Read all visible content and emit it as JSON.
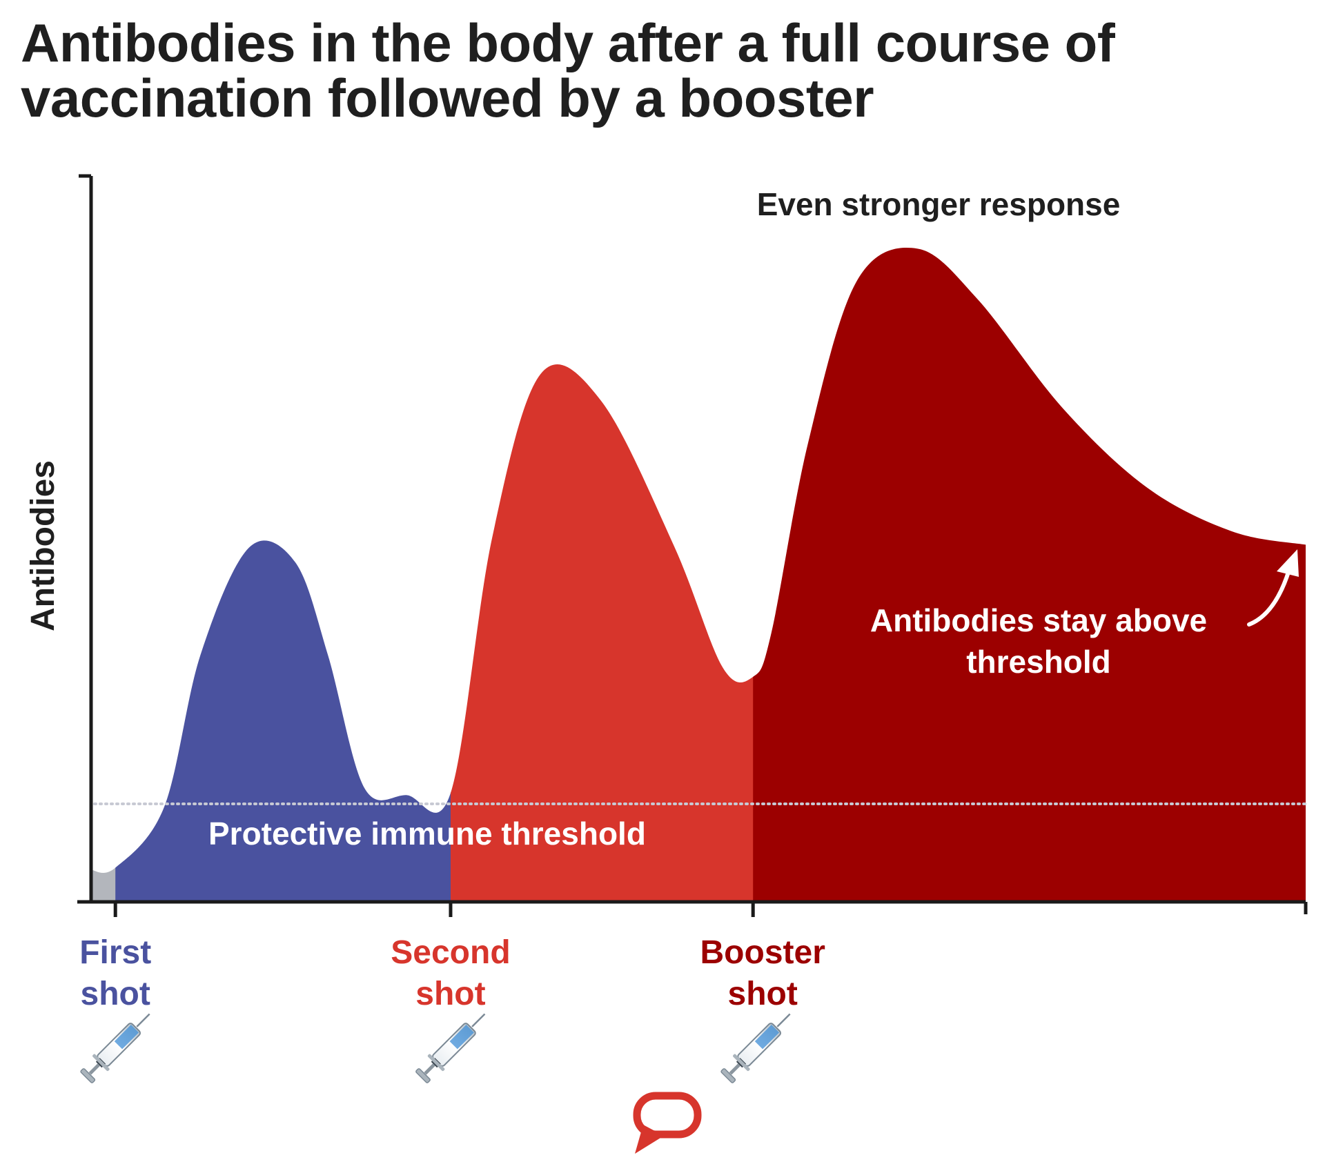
{
  "title_lines": [
    "Antibodies in the body after a full course of",
    "vaccination followed by a booster"
  ],
  "chart_data": {
    "type": "area",
    "ylabel": "Antibodies",
    "threshold": {
      "label": "Protective immune threshold",
      "value": 0.135
    },
    "annotations": [
      {
        "text": "Even stronger response",
        "near": "booster peak"
      },
      {
        "text_lines": [
          "Antibodies stay above",
          "threshold"
        ],
        "near": "end of curve"
      }
    ],
    "events": [
      {
        "name": "First shot",
        "lines": [
          "First",
          "shot"
        ],
        "x": 0.02,
        "color": "#4a529f"
      },
      {
        "name": "Second shot",
        "lines": [
          "Second",
          "shot"
        ],
        "x": 0.296,
        "color": "#d7352c"
      },
      {
        "name": "Booster shot",
        "lines": [
          "Booster",
          "shot"
        ],
        "x": 0.545,
        "color": "#9c0000"
      }
    ],
    "segments": [
      {
        "name": "pre-vaccination",
        "x_range": [
          0,
          0.02
        ],
        "color": "#b3b6bc"
      },
      {
        "name": "after first shot",
        "x_range": [
          0.02,
          0.296
        ],
        "color": "#4a529f"
      },
      {
        "name": "after second shot",
        "x_range": [
          0.296,
          0.545
        ],
        "color": "#d7352c"
      },
      {
        "name": "after booster",
        "x_range": [
          0.545,
          1.0
        ],
        "color": "#9c0000"
      }
    ],
    "curve": {
      "x": [
        0,
        0.02,
        0.06,
        0.09,
        0.13,
        0.168,
        0.195,
        0.225,
        0.26,
        0.296,
        0.33,
        0.37,
        0.42,
        0.48,
        0.52,
        0.545,
        0.56,
        0.59,
        0.63,
        0.68,
        0.73,
        0.8,
        0.87,
        0.94,
        1.0
      ],
      "y": [
        0.044,
        0.047,
        0.13,
        0.34,
        0.488,
        0.468,
        0.34,
        0.157,
        0.147,
        0.15,
        0.5,
        0.727,
        0.69,
        0.49,
        0.323,
        0.31,
        0.37,
        0.63,
        0.854,
        0.9,
        0.83,
        0.68,
        0.57,
        0.51,
        0.492
      ]
    },
    "ylim": [
      0,
      1
    ],
    "xlim": [
      0,
      1
    ],
    "grid": false,
    "legend": "none",
    "icons": [
      "syringe-icon",
      "syringe-icon",
      "syringe-icon"
    ],
    "logo": "speech-bubble-logo"
  }
}
